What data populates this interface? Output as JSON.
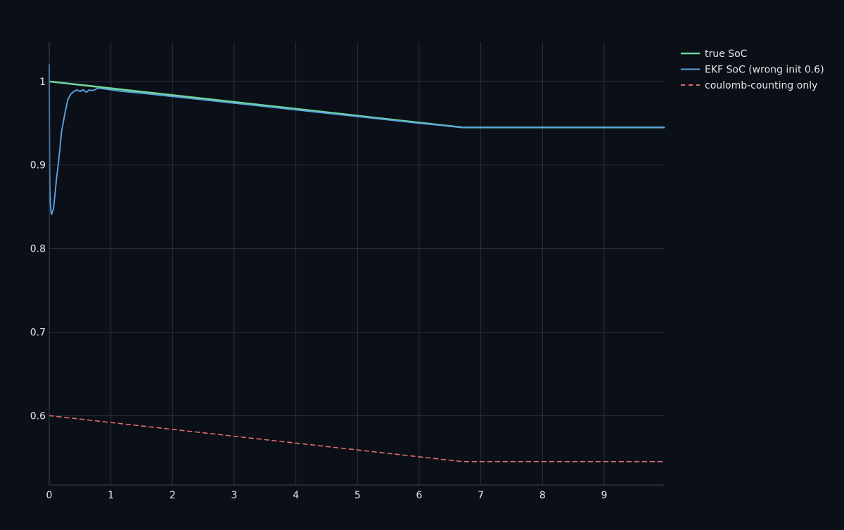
{
  "chart_data": {
    "type": "line",
    "title": "",
    "xlabel": "",
    "ylabel": "",
    "xlim": [
      0,
      9.97
    ],
    "ylim": [
      0.517,
      1.047
    ],
    "x_ticks": [
      0,
      1,
      2,
      3,
      4,
      5,
      6,
      7,
      8,
      9
    ],
    "y_ticks": [
      0.6,
      0.7,
      0.8,
      0.9,
      1.0
    ],
    "x_tick_labels": [
      "0",
      "1",
      "2",
      "3",
      "4",
      "5",
      "6",
      "7",
      "8",
      "9"
    ],
    "y_tick_labels": [
      "0.6",
      "0.7",
      "0.8",
      "0.9",
      "1"
    ],
    "grid": true,
    "legend_position": "top-right, outside plot",
    "series": [
      {
        "name": "true SoC",
        "color": "#6fd69a",
        "dash": "solid",
        "x": [
          0,
          6.7,
          9.97
        ],
        "y": [
          1.0,
          0.945,
          0.945
        ]
      },
      {
        "name": "EKF SoC (wrong init 0.6)",
        "color": "#5aa3e0",
        "dash": "solid",
        "x": [
          0,
          0.005,
          0.01,
          0.02,
          0.03,
          0.04,
          0.05,
          0.07,
          0.1,
          0.12,
          0.15,
          0.18,
          0.2,
          0.25,
          0.3,
          0.35,
          0.4,
          0.45,
          0.5,
          0.55,
          0.6,
          0.65,
          0.7,
          0.8,
          0.9,
          1.0,
          1.2,
          1.5,
          2.0,
          3.0,
          4.0,
          5.0,
          6.0,
          6.7,
          7.0,
          8.0,
          9.0,
          9.97
        ],
        "y": [
          1.02,
          0.9,
          0.87,
          0.852,
          0.843,
          0.841,
          0.844,
          0.848,
          0.87,
          0.885,
          0.903,
          0.925,
          0.94,
          0.96,
          0.978,
          0.985,
          0.988,
          0.99,
          0.988,
          0.99,
          0.987,
          0.99,
          0.989,
          0.992,
          0.991,
          0.99,
          0.988,
          0.986,
          0.982,
          0.974,
          0.966,
          0.958,
          0.95,
          0.945,
          0.945,
          0.945,
          0.945,
          0.945
        ]
      },
      {
        "name": "coulomb-counting only",
        "color": "#e06c6c",
        "dash": "dashed",
        "x": [
          0,
          6.7,
          9.97
        ],
        "y": [
          0.6,
          0.545,
          0.545
        ]
      }
    ]
  }
}
